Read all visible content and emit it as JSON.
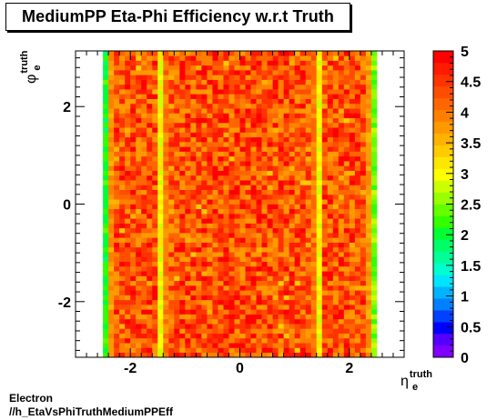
{
  "title": "MediumPP Eta-Phi Efficiency w.r.t Truth",
  "footer": {
    "line1": "Electron",
    "line2": "//h_EtaVsPhiTruthMediumPPEff"
  },
  "chart_data": {
    "type": "heatmap",
    "title": "MediumPP Eta-Phi Efficiency w.r.t Truth",
    "xlabel": {
      "base": "η",
      "sup": "truth",
      "sub": "e"
    },
    "ylabel": {
      "base": "φ",
      "sup": "truth",
      "sub": "e"
    },
    "xlim": [
      -3.0,
      3.0
    ],
    "ylim": [
      -3.1416,
      3.1416
    ],
    "zlim": [
      0,
      5
    ],
    "x_ticks": [
      -2,
      0,
      2
    ],
    "y_ticks": [
      -2,
      0,
      2
    ],
    "z_ticks": [
      0,
      0.5,
      1,
      1.5,
      2,
      2.5,
      3,
      3.5,
      4,
      4.5,
      5
    ],
    "x_tick_labels": [
      "-2",
      "0",
      "2"
    ],
    "y_tick_labels": [
      "-2",
      "0",
      "2"
    ],
    "z_tick_labels": [
      "0",
      "0.5",
      "1",
      "1.5",
      "2",
      "2.5",
      "3",
      "3.5",
      "4",
      "4.5",
      "5"
    ],
    "binning": {
      "n_eta": 50,
      "eta_min": -2.5,
      "eta_max": 2.5,
      "n_phi": 64
    },
    "column_levels": [
      2.1,
      3.8,
      4.5,
      4.6,
      4.6,
      4.6,
      4.6,
      4.6,
      4.6,
      4.6,
      3.0,
      4.0,
      4.5,
      4.6,
      4.6,
      4.6,
      4.6,
      4.6,
      4.6,
      4.6,
      4.6,
      4.6,
      4.6,
      4.6,
      4.6,
      4.6,
      4.6,
      4.6,
      4.6,
      4.6,
      4.6,
      4.6,
      4.6,
      4.6,
      4.6,
      4.6,
      4.6,
      4.5,
      4.0,
      3.0,
      4.6,
      4.6,
      4.6,
      4.6,
      4.6,
      4.6,
      4.6,
      4.5,
      3.8,
      2.5
    ],
    "colorbar_colors": [
      "#7f00ff",
      "#5500ff",
      "#0000ff",
      "#0040ff",
      "#0080ff",
      "#00b3ff",
      "#00e5ff",
      "#00ffcc",
      "#00ff99",
      "#00ff66",
      "#00ff33",
      "#33ff00",
      "#66ff00",
      "#99ff00",
      "#ccff00",
      "#ffff00",
      "#ffe600",
      "#ffcc00",
      "#ffb300",
      "#ff9900",
      "#ff8000",
      "#ff6600",
      "#ff4d00",
      "#ff3300",
      "#ff1a00",
      "#ff0000"
    ]
  }
}
